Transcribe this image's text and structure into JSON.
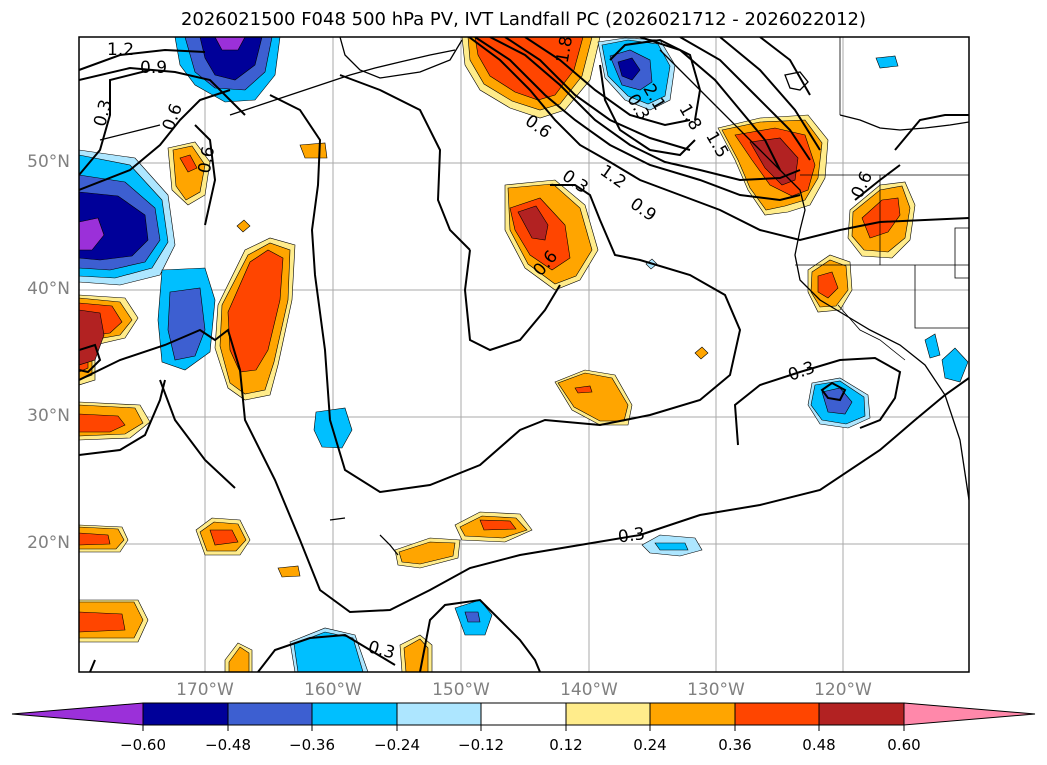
{
  "title": "2026021500 F048 500 hPa PV, IVT Landfall PC (2026021712 - 2026022012)",
  "lat_labels": [
    "50°N",
    "40°N",
    "30°N",
    "20°N"
  ],
  "lon_labels": [
    "170°W",
    "160°W",
    "150°W",
    "140°W",
    "130°W",
    "120°W"
  ],
  "contour_labels": [
    "1.2",
    "0.9",
    "0.3",
    "0.6",
    "0.6",
    "0.6",
    "0.3",
    "1.2",
    "0.9",
    "0.6",
    "0.3",
    "0.6",
    "0.3",
    "0.3",
    "1.8",
    "2.1",
    "1.8",
    "1.5",
    "0.3"
  ],
  "colorbar": {
    "ticks": [
      "−0.60",
      "−0.48",
      "−0.36",
      "−0.24",
      "−0.12",
      "0.12",
      "0.24",
      "0.36",
      "0.48",
      "0.60"
    ],
    "colors": {
      "under": "#9b30d9",
      "b1": "#000099",
      "b2": "#3d5fd1",
      "b3": "#00bfff",
      "b4": "#ade6ff",
      "b5": "#ffffff",
      "b6": "#ffec8b",
      "b7": "#ffa500",
      "b8": "#ff4500",
      "b9": "#b22222",
      "over": "#ff88aa"
    }
  }
}
